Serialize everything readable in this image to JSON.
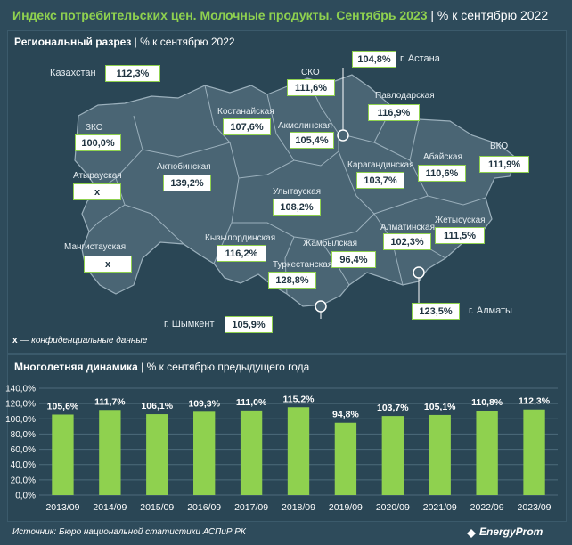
{
  "header": {
    "title_main": "Индекс потребительских цен. Молочные продукты. Сентябрь 2023",
    "title_sep": "|",
    "title_unit": "% к сентябрю 2022"
  },
  "map_section": {
    "title": "Региональный разрез",
    "title_sep": "|",
    "title_unit": "% к сентябрю 2022",
    "kazakhstan_label": "Казахстан",
    "kazakhstan_value": "112,3%",
    "regions": [
      {
        "name": "СКО",
        "value": "111,6%"
      },
      {
        "name": "г. Астана",
        "value": "104,8%"
      },
      {
        "name": "Павлодарская",
        "value": "116,9%"
      },
      {
        "name": "ЗКО",
        "value": "100,0%"
      },
      {
        "name": "Костанайская",
        "value": "107,6%"
      },
      {
        "name": "Акмолинская",
        "value": "105,4%"
      },
      {
        "name": "Абайская",
        "value": "110,6%"
      },
      {
        "name": "ВКО",
        "value": "111,9%"
      },
      {
        "name": "Атырауская",
        "value": "x"
      },
      {
        "name": "Актюбинская",
        "value": "139,2%"
      },
      {
        "name": "Карагандинская",
        "value": "103,7%"
      },
      {
        "name": "Улытауская",
        "value": "108,2%"
      },
      {
        "name": "Жетысуская",
        "value": "111,5%"
      },
      {
        "name": "Алматинская",
        "value": "102,3%"
      },
      {
        "name": "Мангистауская",
        "value": "x"
      },
      {
        "name": "Кызылординская",
        "value": "116,2%"
      },
      {
        "name": "Жамбылская",
        "value": "96,4%"
      },
      {
        "name": "Туркестанская",
        "value": "128,8%"
      },
      {
        "name": "г. Алматы",
        "value": "123,5%"
      },
      {
        "name": "г. Шымкент",
        "value": "105,9%"
      }
    ],
    "note_symbol": "x",
    "note_text": " — конфиденциальные данные"
  },
  "dynamics_section": {
    "title": "Многолетняя динамика",
    "title_sep": "|",
    "title_unit": "% к сентябрю предыдущего года"
  },
  "chart_data": {
    "type": "bar",
    "categories": [
      "2013/09",
      "2014/09",
      "2015/09",
      "2016/09",
      "2017/09",
      "2018/09",
      "2019/09",
      "2020/09",
      "2021/09",
      "2022/09",
      "2023/09"
    ],
    "values": [
      105.6,
      111.7,
      106.1,
      109.3,
      111.0,
      115.2,
      94.8,
      103.7,
      105.1,
      110.8,
      112.3
    ],
    "data_labels": [
      "105,6%",
      "111,7%",
      "106,1%",
      "109,3%",
      "111,0%",
      "115,2%",
      "94,8%",
      "103,7%",
      "105,1%",
      "110,8%",
      "112,3%"
    ],
    "y_ticks": [
      "0,0%",
      "20,0%",
      "40,0%",
      "60,0%",
      "80,0%",
      "100,0%",
      "120,0%",
      "140,0%"
    ],
    "ylim": [
      0,
      140
    ],
    "grid": true,
    "bar_color": "#8fd14f"
  },
  "footer": {
    "source": "Источник: Бюро национальной статистики АСПиР РК",
    "logo": "EnergyProm"
  }
}
